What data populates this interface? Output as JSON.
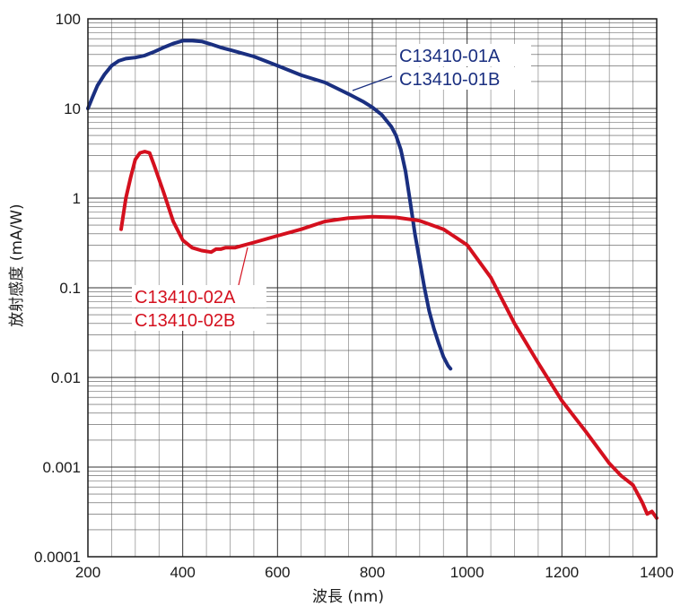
{
  "chart_data": {
    "type": "line",
    "xlabel": "波長 (nm)",
    "ylabel": "放射感度 (mA/W)",
    "x_scale": "linear",
    "y_scale": "log",
    "xlim": [
      200,
      1400
    ],
    "ylim": [
      0.0001,
      100
    ],
    "x_ticks": [
      "200",
      "400",
      "600",
      "800",
      "1000",
      "1200",
      "1400"
    ],
    "y_ticks": [
      "100",
      "10",
      "1",
      "0.1",
      "0.01",
      "0.001",
      "0.0001"
    ],
    "grid": true,
    "series": [
      {
        "name": "C13410-01A\nC13410-01B",
        "label_lines": [
          "C13410-01A",
          "C13410-01B"
        ],
        "color": "#1a2f80",
        "x": [
          200,
          210,
          220,
          235,
          250,
          265,
          280,
          300,
          320,
          340,
          360,
          380,
          400,
          420,
          440,
          460,
          480,
          500,
          550,
          600,
          650,
          700,
          750,
          780,
          800,
          820,
          840,
          850,
          860,
          870,
          880,
          890,
          900,
          910,
          920,
          930,
          940,
          950,
          960,
          965
        ],
        "y": [
          10,
          13.5,
          18,
          24,
          30,
          34,
          36,
          37,
          39,
          43,
          48,
          53,
          57,
          57,
          56,
          52,
          48,
          45,
          38,
          30,
          23.5,
          19.5,
          14.5,
          12,
          10.3,
          8.5,
          6.3,
          5,
          3.5,
          2,
          0.9,
          0.4,
          0.2,
          0.1,
          0.055,
          0.035,
          0.024,
          0.017,
          0.0135,
          0.0125
        ]
      },
      {
        "name": "C13410-02A\nC13410-02B",
        "label_lines": [
          "C13410-02A",
          "C13410-02B"
        ],
        "color": "#d4101e",
        "x": [
          270,
          280,
          290,
          300,
          310,
          320,
          330,
          340,
          360,
          380,
          400,
          420,
          440,
          460,
          470,
          480,
          490,
          500,
          510,
          520,
          550,
          600,
          650,
          700,
          750,
          800,
          850,
          900,
          950,
          1000,
          1050,
          1100,
          1150,
          1200,
          1250,
          1300,
          1325,
          1350,
          1370,
          1380,
          1390,
          1400
        ],
        "y": [
          0.45,
          1,
          1.7,
          2.7,
          3.2,
          3.3,
          3.2,
          2.3,
          1.15,
          0.55,
          0.34,
          0.28,
          0.26,
          0.25,
          0.27,
          0.27,
          0.28,
          0.28,
          0.28,
          0.29,
          0.32,
          0.38,
          0.45,
          0.55,
          0.6,
          0.62,
          0.61,
          0.56,
          0.45,
          0.3,
          0.13,
          0.04,
          0.0145,
          0.0055,
          0.0025,
          0.0011,
          0.0008,
          0.00063,
          0.0004,
          0.0003,
          0.00032,
          0.00027
        ]
      }
    ]
  }
}
